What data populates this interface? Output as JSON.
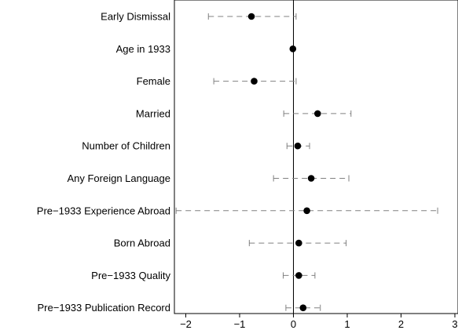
{
  "chart_data": {
    "type": "scatter",
    "subtype": "coefficient-plot",
    "title": "",
    "xlabel": "",
    "ylabel": "",
    "xlim": [
      -2.25,
      3
    ],
    "xticks": [
      -2,
      -1,
      0,
      1,
      2,
      3
    ],
    "xtick_labels": [
      "−2",
      "−1",
      "0",
      "1",
      "2",
      "3"
    ],
    "reference_line_x": 0,
    "grid": false,
    "legend": "none",
    "colors": {
      "point": "#000000",
      "ci": "#808080",
      "frame": "#000000"
    },
    "rows": [
      {
        "label": "Early Dismissal",
        "estimate": -0.78,
        "ci": [
          -1.58,
          0.05
        ]
      },
      {
        "label": "Age in 1933",
        "estimate": -0.01,
        "ci": [
          -0.01,
          -0.01
        ]
      },
      {
        "label": "Female",
        "estimate": -0.73,
        "ci": [
          -1.48,
          0.05
        ]
      },
      {
        "label": "Married",
        "estimate": 0.45,
        "ci": [
          -0.18,
          1.07
        ]
      },
      {
        "label": "Number of Children",
        "estimate": 0.08,
        "ci": [
          -0.12,
          0.3
        ]
      },
      {
        "label": "Any Foreign Language",
        "estimate": 0.33,
        "ci": [
          -0.37,
          1.03
        ]
      },
      {
        "label": "Pre−1933 Experience Abroad",
        "estimate": 0.25,
        "ci": [
          -2.18,
          2.68
        ]
      },
      {
        "label": "Born Abroad",
        "estimate": 0.1,
        "ci": [
          -0.82,
          0.98
        ]
      },
      {
        "label": "Pre−1933 Quality",
        "estimate": 0.1,
        "ci": [
          -0.19,
          0.4
        ]
      },
      {
        "label": "Pre−1933 Publication Record",
        "estimate": 0.18,
        "ci": [
          -0.14,
          0.5
        ]
      }
    ]
  }
}
